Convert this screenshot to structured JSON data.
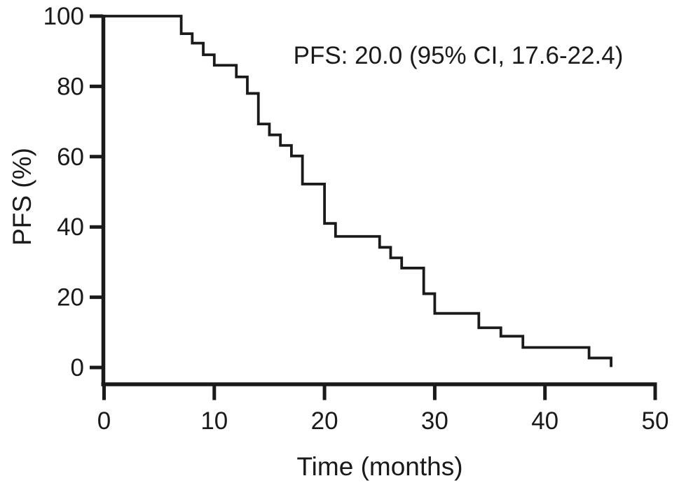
{
  "chart_data": {
    "type": "line",
    "subtype": "kaplan-meier-step-curve",
    "title": "",
    "xlabel": "Time (months)",
    "ylabel": "PFS (%)",
    "annotation": "PFS: 20.0 (95% CI, 17.6-22.4)",
    "median_pfs": "20.0",
    "ci_95": "17.6-22.4",
    "xlim": [
      0,
      50
    ],
    "ylim": [
      0,
      100
    ],
    "x_ticks": [
      0,
      10,
      20,
      30,
      40,
      50
    ],
    "y_ticks": [
      0,
      20,
      40,
      60,
      80,
      100
    ],
    "grid": false,
    "legend": "none",
    "series": [
      {
        "name": "PFS",
        "start": [
          0,
          100
        ],
        "steps": [
          [
            7,
            95
          ],
          [
            8,
            92.3
          ],
          [
            9,
            89
          ],
          [
            10,
            86
          ],
          [
            12,
            82.7
          ],
          [
            13,
            78
          ],
          [
            14,
            69.3
          ],
          [
            15,
            66.2
          ],
          [
            16,
            63.2
          ],
          [
            17,
            60.2
          ],
          [
            18,
            52.2
          ],
          [
            20,
            41
          ],
          [
            21,
            37.3
          ],
          [
            25,
            34.2
          ],
          [
            26,
            31.2
          ],
          [
            27,
            28.3
          ],
          [
            29,
            21
          ],
          [
            30,
            15.4
          ],
          [
            34,
            11.3
          ],
          [
            36,
            8.9
          ],
          [
            38,
            5.7
          ],
          [
            44,
            2.7
          ],
          [
            46,
            0.5
          ]
        ]
      }
    ]
  },
  "colors": {
    "curve": "#1a1a1a",
    "axis": "#1a1a1a",
    "text": "#1a1a1a",
    "background": "#ffffff"
  }
}
